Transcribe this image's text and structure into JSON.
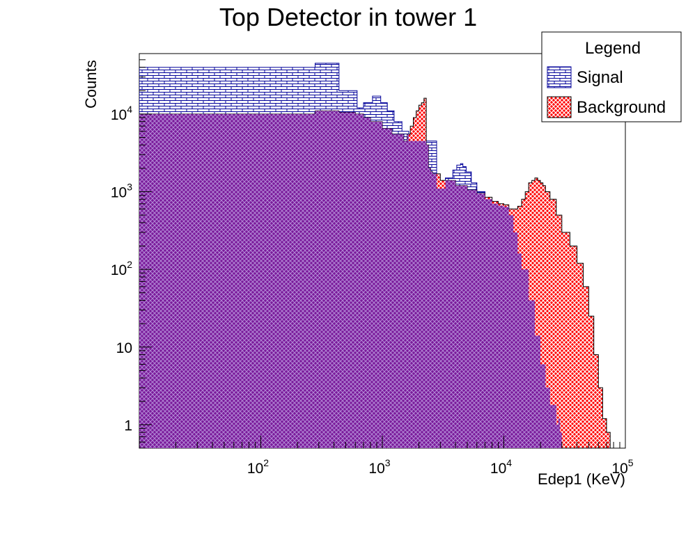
{
  "chart_data": {
    "type": "area",
    "title": "Top Detector in tower 1",
    "xlabel": "Edep1 (KeV)",
    "ylabel": "Counts",
    "xscale": "log",
    "yscale": "log",
    "xlim": [
      10,
      100000
    ],
    "ylim": [
      0.5,
      60000
    ],
    "x_ticks": [
      {
        "base": "10",
        "exp": "2",
        "value": 100
      },
      {
        "base": "10",
        "exp": "3",
        "value": 1000
      },
      {
        "base": "10",
        "exp": "4",
        "value": 10000
      },
      {
        "base": "10",
        "exp": "5",
        "value": 100000
      }
    ],
    "y_ticks": [
      {
        "base": "1",
        "exp": "",
        "value": 1
      },
      {
        "base": "10",
        "exp": "",
        "value": 10
      },
      {
        "base": "10",
        "exp": "2",
        "value": 100
      },
      {
        "base": "10",
        "exp": "3",
        "value": 1000
      },
      {
        "base": "10",
        "exp": "4",
        "value": 10000
      }
    ],
    "legend": {
      "title": "Legend",
      "placement": "top-right",
      "entries": [
        "Signal",
        "Background"
      ]
    },
    "series": [
      {
        "name": "Signal",
        "color": "#000099",
        "fill": "brick-pattern",
        "x": [
          10,
          270,
          280,
          420,
          440,
          600,
          620,
          680,
          700,
          800,
          830,
          930,
          970,
          1050,
          1100,
          1200,
          1250,
          1350,
          1450,
          1550,
          1650,
          2600,
          2800,
          3100,
          3300,
          3600,
          3800,
          4100,
          4400,
          4600,
          4900,
          5400,
          6000,
          7000,
          8000,
          9000,
          10000,
          11000,
          12000,
          13000,
          14000,
          16000,
          18000,
          20000,
          22000,
          24000,
          27000,
          28000,
          29000,
          30000
        ],
        "y": [
          40000,
          40000,
          45000,
          45000,
          20000,
          20000,
          12000,
          12000,
          14000,
          14000,
          17000,
          17000,
          14000,
          14000,
          11000,
          11000,
          8000,
          8000,
          6000,
          6000,
          4500,
          4500,
          1100,
          1100,
          1500,
          1500,
          1900,
          2200,
          2300,
          2100,
          1800,
          1300,
          1000,
          800,
          700,
          660,
          640,
          500,
          300,
          160,
          100,
          40,
          14,
          6,
          3,
          1.8,
          1,
          1.2,
          0.8,
          0.5
        ]
      },
      {
        "name": "Background",
        "color": "#ff0000",
        "fill": "crosshatch-pattern",
        "x": [
          10,
          270,
          280,
          420,
          440,
          600,
          700,
          800,
          1000,
          1200,
          1500,
          1600,
          1700,
          1800,
          1900,
          2000,
          2100,
          2200,
          2300,
          2400,
          2500,
          2600,
          3000,
          4000,
          5000,
          6000,
          7000,
          8000,
          9000,
          10000,
          11000,
          12000,
          13000,
          14000,
          15000,
          16000,
          17000,
          18000,
          19000,
          20000,
          21000,
          22000,
          24000,
          27000,
          30000,
          35000,
          40000,
          45000,
          50000,
          55000,
          60000,
          65000,
          70000,
          75000
        ],
        "y": [
          10000,
          10000,
          11000,
          11000,
          10500,
          10000,
          9000,
          8000,
          6500,
          5500,
          4500,
          5500,
          7000,
          9000,
          11000,
          13000,
          14000,
          16000,
          4000,
          2000,
          1800,
          1700,
          1400,
          1200,
          1050,
          950,
          850,
          750,
          700,
          680,
          600,
          600,
          650,
          800,
          1000,
          1300,
          1400,
          1500,
          1400,
          1300,
          1200,
          1000,
          800,
          500,
          300,
          200,
          120,
          60,
          25,
          8,
          3,
          1.2,
          0.8,
          0.5
        ]
      }
    ]
  }
}
